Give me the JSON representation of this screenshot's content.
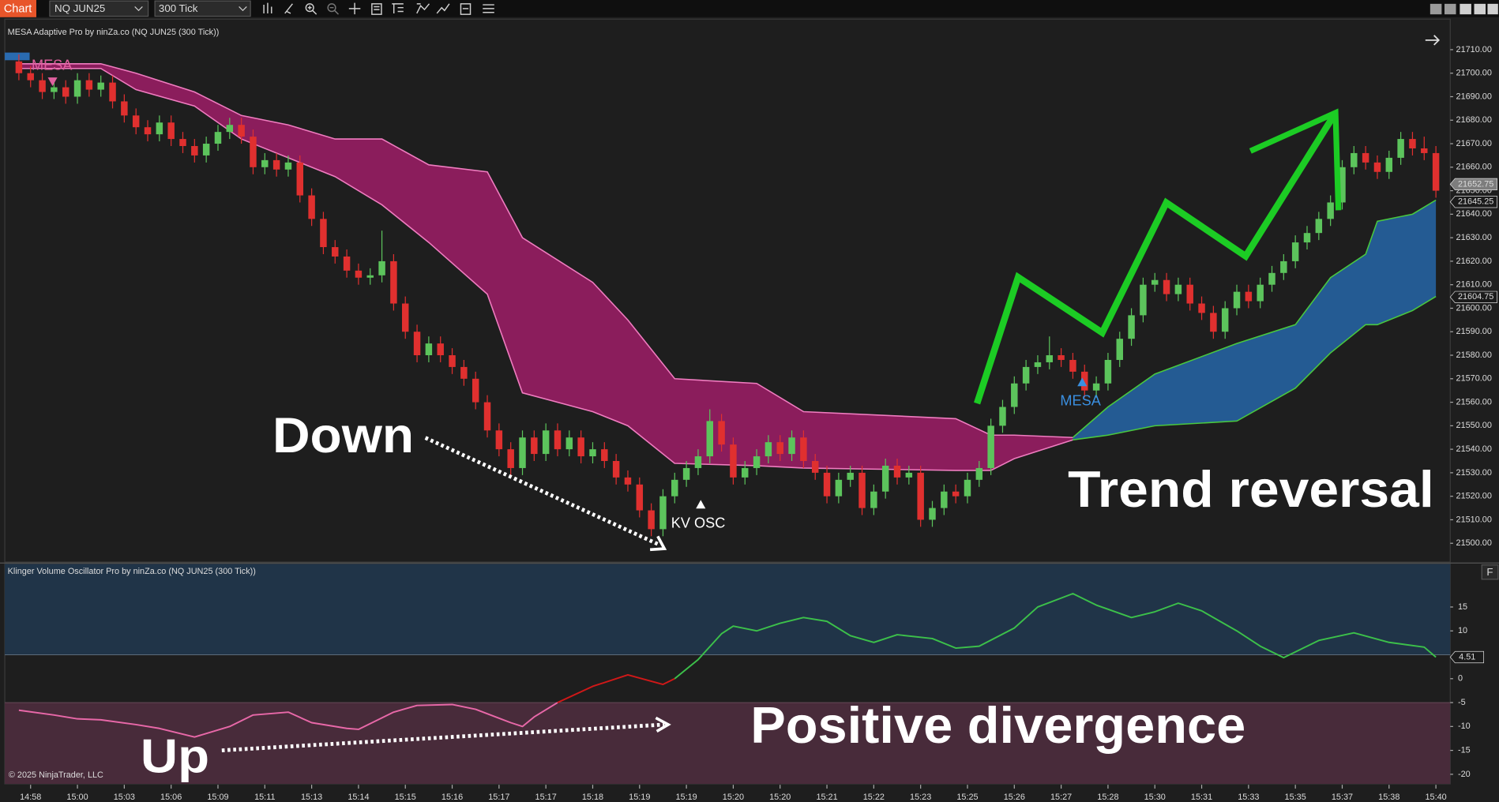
{
  "toolbar": {
    "button": "Chart",
    "instrument": "NQ JUN25",
    "period": "300 Tick"
  },
  "annotations": {
    "mesa_sell": "MESA",
    "kv_signal": "KV OSC",
    "mesa_buy": "MESA",
    "down": "Down",
    "trend": "Trend reversal",
    "up": "Up",
    "divergence": "Positive divergence"
  },
  "copyright": "© 2025 NinjaTrader, LLC",
  "panel_button": "F",
  "chart_data": [
    {
      "type": "candlestick",
      "title": "MESA Adaptive Pro by ninZa.co (NQ JUN25 (300 Tick))",
      "categories": [
        null,
        "14:58",
        null,
        null,
        null,
        "15:00",
        null,
        null,
        null,
        "15:03",
        null,
        null,
        null,
        "15:06",
        null,
        null,
        null,
        "15:09",
        null,
        null,
        null,
        "15:11",
        null,
        null,
        null,
        "15:13",
        null,
        null,
        null,
        "15:14",
        null,
        null,
        null,
        "15:15",
        null,
        null,
        null,
        "15:16",
        null,
        null,
        null,
        "15:17",
        null,
        null,
        null,
        "15:17",
        null,
        null,
        null,
        "15:18",
        null,
        null,
        null,
        "15:19",
        null,
        null,
        null,
        "15:19",
        null,
        null,
        null,
        "15:20",
        null,
        null,
        null,
        "15:20",
        null,
        null,
        null,
        "15:21",
        null,
        null,
        null,
        "15:22",
        null,
        null,
        null,
        "15:23",
        null,
        null,
        null,
        "15:25",
        null,
        null,
        null,
        "15:26",
        null,
        null,
        null,
        "15:27",
        null,
        null,
        null,
        "15:28",
        null,
        null,
        null,
        "15:30",
        null,
        null,
        null,
        "15:31",
        null,
        null,
        null,
        "15:33",
        null,
        null,
        null,
        "15:35",
        null,
        null,
        null,
        "15:37",
        null,
        null,
        null,
        "15:38",
        null,
        null,
        null,
        "15:40"
      ],
      "open": [
        21705,
        21700,
        21697,
        21692,
        21694,
        21690,
        21697,
        21693,
        21696,
        21688,
        21682,
        21677,
        21674,
        21679,
        21672,
        21669,
        21665,
        21670,
        21675,
        21678,
        21673,
        21660,
        21663,
        21659,
        21662,
        21648,
        21638,
        21626,
        21622,
        21616,
        21613,
        21614,
        21620,
        21602,
        21590,
        21580,
        21585,
        21580,
        21575,
        21570,
        21560,
        21548,
        21540,
        21532,
        21545,
        21538,
        21548,
        21540,
        21545,
        21537,
        21540,
        21535,
        21528,
        21525,
        21514,
        21506,
        21520,
        21527,
        21532,
        21537,
        21552,
        21542,
        21528,
        21532,
        21537,
        21543,
        21538,
        21545,
        21535,
        21530,
        21520,
        21527,
        21530,
        21515,
        21522,
        21533,
        21528,
        21530,
        21510,
        21515,
        21522,
        21520,
        21527,
        21532,
        21550,
        21558,
        21568,
        21575,
        21577,
        21580,
        21578,
        21573,
        21565,
        21568,
        21578,
        21587,
        21597,
        21610,
        21612,
        21606,
        21610,
        21602,
        21598,
        21590,
        21600,
        21607,
        21603,
        21610,
        21615,
        21620,
        21628,
        21632,
        21638,
        21645,
        21660,
        21666,
        21662,
        21658,
        21664,
        21672,
        21668,
        21666
      ],
      "high": [
        21708,
        21703,
        21700,
        21697,
        21697,
        21700,
        21700,
        21699,
        21699,
        21691,
        21685,
        21680,
        21682,
        21682,
        21675,
        21672,
        21673,
        21678,
        21681,
        21681,
        21676,
        21666,
        21666,
        21665,
        21665,
        21651,
        21641,
        21629,
        21625,
        21619,
        21617,
        21633,
        21623,
        21605,
        21593,
        21588,
        21588,
        21583,
        21578,
        21573,
        21563,
        21551,
        21543,
        21548,
        21548,
        21551,
        21551,
        21548,
        21548,
        21543,
        21543,
        21538,
        21531,
        21528,
        21517,
        21523,
        21530,
        21535,
        21540,
        21557,
        21555,
        21545,
        21535,
        21540,
        21546,
        21546,
        21548,
        21548,
        21538,
        21533,
        21530,
        21533,
        21533,
        21525,
        21536,
        21536,
        21533,
        21533,
        21518,
        21525,
        21525,
        21530,
        21535,
        21553,
        21561,
        21571,
        21578,
        21580,
        21588,
        21583,
        21581,
        21576,
        21571,
        21581,
        21590,
        21600,
        21613,
        21615,
        21615,
        21613,
        21613,
        21605,
        21601,
        21603,
        21610,
        21610,
        21613,
        21618,
        21623,
        21631,
        21635,
        21641,
        21648,
        21663,
        21669,
        21669,
        21665,
        21667,
        21675,
        21675,
        21673,
        21669
      ],
      "low": [
        21697,
        21694,
        21689,
        21689,
        21687,
        21687,
        21690,
        21690,
        21685,
        21679,
        21674,
        21671,
        21671,
        21669,
        21666,
        21662,
        21662,
        21667,
        21672,
        21670,
        21657,
        21657,
        21656,
        21656,
        21645,
        21635,
        21623,
        21619,
        21613,
        21610,
        21610,
        21611,
        21599,
        21587,
        21577,
        21577,
        21577,
        21572,
        21567,
        21557,
        21545,
        21537,
        21529,
        21529,
        21535,
        21535,
        21537,
        21537,
        21534,
        21534,
        21532,
        21525,
        21522,
        21511,
        21503,
        21503,
        21517,
        21524,
        21529,
        21534,
        21539,
        21525,
        21525,
        21529,
        21534,
        21535,
        21535,
        21532,
        21527,
        21517,
        21517,
        21524,
        21512,
        21512,
        21519,
        21525,
        21525,
        21507,
        21507,
        21512,
        21517,
        21517,
        21524,
        21529,
        21547,
        21555,
        21565,
        21572,
        21574,
        21575,
        21570,
        21562,
        21562,
        21565,
        21575,
        21584,
        21594,
        21607,
        21603,
        21603,
        21599,
        21595,
        21587,
        21587,
        21597,
        21600,
        21600,
        21607,
        21612,
        21617,
        21625,
        21629,
        21635,
        21642,
        21657,
        21659,
        21655,
        21655,
        21661,
        21665,
        21663,
        21647
      ],
      "close": [
        21700,
        21697,
        21692,
        21694,
        21690,
        21697,
        21693,
        21696,
        21688,
        21682,
        21677,
        21674,
        21679,
        21672,
        21669,
        21665,
        21670,
        21675,
        21678,
        21673,
        21660,
        21663,
        21659,
        21662,
        21648,
        21638,
        21626,
        21622,
        21616,
        21613,
        21614,
        21620,
        21602,
        21590,
        21580,
        21585,
        21580,
        21575,
        21570,
        21560,
        21548,
        21540,
        21532,
        21545,
        21538,
        21548,
        21540,
        21545,
        21537,
        21540,
        21535,
        21528,
        21525,
        21514,
        21506,
        21520,
        21527,
        21532,
        21537,
        21552,
        21542,
        21528,
        21532,
        21537,
        21543,
        21538,
        21545,
        21535,
        21530,
        21520,
        21527,
        21530,
        21515,
        21522,
        21533,
        21528,
        21530,
        21510,
        21515,
        21522,
        21520,
        21527,
        21532,
        21550,
        21558,
        21568,
        21575,
        21577,
        21580,
        21578,
        21573,
        21565,
        21568,
        21578,
        21587,
        21597,
        21610,
        21612,
        21606,
        21610,
        21602,
        21598,
        21590,
        21600,
        21607,
        21603,
        21610,
        21615,
        21620,
        21628,
        21632,
        21638,
        21645,
        21660,
        21666,
        21662,
        21658,
        21664,
        21672,
        21668,
        21666,
        21650
      ],
      "up_color": "#5cc45c",
      "down_color": "#e0302f",
      "bands": [
        {
          "color": "#8b1d5c",
          "edge_color": "#f07cc0",
          "x": [
            0,
            7,
            10,
            15,
            19,
            23,
            27,
            31,
            35,
            40,
            43,
            49,
            52,
            56,
            63,
            67,
            80,
            83,
            85,
            90
          ],
          "upper": [
            21704,
            21704,
            21700,
            21692,
            21682,
            21678,
            21672,
            21672,
            21661,
            21658,
            21630,
            21611,
            21595,
            21570,
            21568,
            21556,
            21553,
            21546,
            21546,
            21545
          ],
          "lower": [
            21702,
            21702,
            21693,
            21686,
            21672,
            21664,
            21656,
            21644,
            21628,
            21606,
            21564,
            21556,
            21550,
            21534,
            21533,
            21532,
            21531,
            21531,
            21536,
            21544
          ]
        },
        {
          "color": "#245b93",
          "edge_color": "#49c83f",
          "x": [
            90,
            93,
            97,
            104,
            109,
            112,
            115,
            116,
            119,
            121
          ],
          "upper": [
            21545,
            21558,
            21572,
            21585,
            21593,
            21613,
            21623,
            21637,
            21640,
            21646
          ],
          "lower": [
            21544,
            21546,
            21550,
            21552,
            21566,
            21581,
            21593,
            21593,
            21599,
            21605
          ]
        }
      ],
      "ylim": [
        21492,
        21723
      ],
      "yticks": [
        {
          "value": 21500,
          "label": "21500.00"
        },
        {
          "value": 21510,
          "label": "21510.00"
        },
        {
          "value": 21520,
          "label": "21520.00"
        },
        {
          "value": 21530,
          "label": "21530.00"
        },
        {
          "value": 21540,
          "label": "21540.00"
        },
        {
          "value": 21550,
          "label": "21550.00"
        },
        {
          "value": 21560,
          "label": "21560.00"
        },
        {
          "value": 21570,
          "label": "21570.00"
        },
        {
          "value": 21580,
          "label": "21580.00"
        },
        {
          "value": 21590,
          "label": "21590.00"
        },
        {
          "value": 21600,
          "label": "21600.00"
        },
        {
          "value": 21610,
          "label": "21610.00"
        },
        {
          "value": 21620,
          "label": "21620.00"
        },
        {
          "value": 21630,
          "label": "21630.00"
        },
        {
          "value": 21640,
          "label": "21640.00"
        },
        {
          "value": 21650,
          "label": "21650.00"
        },
        {
          "value": 21660,
          "label": "21660.00"
        },
        {
          "value": 21670,
          "label": "21670.00"
        },
        {
          "value": 21680,
          "label": "21680.00"
        },
        {
          "value": 21690,
          "label": "21690.00"
        },
        {
          "value": 21700,
          "label": "21700.00"
        },
        {
          "value": 21710,
          "label": "21710.00"
        }
      ],
      "price_markers": [
        21652.75,
        21645.25,
        21604.75
      ],
      "price_marker_colors": [
        "#7d7d7d",
        "#1b1b1b",
        "#1b1b1b"
      ]
    },
    {
      "type": "line",
      "title": "Klinger Volume Oscillator Pro by ninZa.co (NQ JUN25 (300 Tick))",
      "series": [
        {
          "color": "#e868a8",
          "x": [
            0,
            3,
            5,
            7,
            10,
            12,
            15,
            18,
            20,
            23,
            25,
            28,
            29,
            32,
            34,
            37,
            39,
            42,
            43,
            44,
            46
          ],
          "values": [
            -6.6,
            -7.6,
            -8.4,
            -8.6,
            -9.6,
            -10.4,
            -12.2,
            -10,
            -7.6,
            -7,
            -9.2,
            -10.4,
            -10.6,
            -7,
            -5.6,
            -5.4,
            -6.4,
            -9.2,
            -10,
            -8,
            -5
          ]
        },
        {
          "color": "#d01818",
          "x": [
            46,
            49,
            52,
            55,
            56
          ],
          "values": [
            -5,
            -1.6,
            0.8,
            -1.2,
            0
          ]
        },
        {
          "color": "#3cc04a",
          "x": [
            56,
            58,
            60,
            61,
            63,
            65,
            67,
            69,
            71,
            73,
            75,
            78,
            80,
            82,
            85,
            87,
            90,
            92,
            95,
            97,
            99,
            101,
            104,
            106,
            108,
            111,
            114,
            117,
            120,
            121
          ],
          "values": [
            0,
            4,
            9.4,
            11,
            10,
            11.6,
            12.8,
            12,
            9,
            7.6,
            9.2,
            8.4,
            6.4,
            6.8,
            10.6,
            15,
            17.8,
            15.4,
            12.8,
            14,
            15.8,
            14.2,
            10,
            6.8,
            4.4,
            8,
            9.6,
            7.6,
            6.6,
            4.51
          ]
        }
      ],
      "ylim": [
        -22,
        24
      ],
      "yticks": [
        15,
        10,
        0,
        -5,
        -10,
        -15,
        -20
      ],
      "upper_zone": {
        "level": 5,
        "color": "#203448"
      },
      "lower_zone": {
        "level": -5,
        "color": "#482b3a"
      },
      "last_value": 4.51
    }
  ]
}
